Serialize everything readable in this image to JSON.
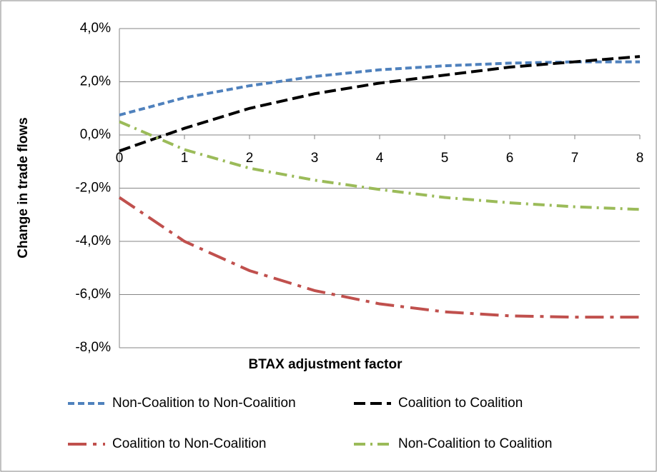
{
  "chart_data": {
    "type": "line",
    "x_label": "BTAX adjustment factor",
    "y_label": "Change in trade flows",
    "x": [
      0,
      1,
      2,
      3,
      4,
      5,
      6,
      7,
      8
    ],
    "xlim": [
      0,
      8
    ],
    "xticks": [
      0,
      1,
      2,
      3,
      4,
      5,
      6,
      7,
      8
    ],
    "ylim": [
      -8,
      4
    ],
    "yticks": [
      {
        "value": -8,
        "label": "-8,0%"
      },
      {
        "value": -6,
        "label": "-6,0%"
      },
      {
        "value": -4,
        "label": "-4,0%"
      },
      {
        "value": -2,
        "label": "-2,0%"
      },
      {
        "value": 0,
        "label": "0,0%"
      },
      {
        "value": 2,
        "label": "2,0%"
      },
      {
        "value": 4,
        "label": "4,0%"
      }
    ],
    "grid": true,
    "legend": "bottom",
    "series": [
      {
        "name": "Non-Coalition to Non-Coalition",
        "color": "#4f81bd",
        "values": [
          0.75,
          1.4,
          1.85,
          2.2,
          2.45,
          2.6,
          2.7,
          2.75,
          2.75
        ]
      },
      {
        "name": "Coalition to Coalition",
        "color": "#000000",
        "values": [
          -0.6,
          0.25,
          1.0,
          1.55,
          1.95,
          2.25,
          2.55,
          2.75,
          2.95
        ]
      },
      {
        "name": "Coalition to Non-Coalition",
        "color": "#c0504d",
        "values": [
          -2.35,
          -4.0,
          -5.1,
          -5.85,
          -6.35,
          -6.65,
          -6.8,
          -6.85,
          -6.85
        ]
      },
      {
        "name": "Non-Coalition to Coalition",
        "color": "#9bbb59",
        "values": [
          0.5,
          -0.55,
          -1.25,
          -1.7,
          -2.05,
          -2.35,
          -2.55,
          -2.7,
          -2.8
        ]
      }
    ]
  }
}
